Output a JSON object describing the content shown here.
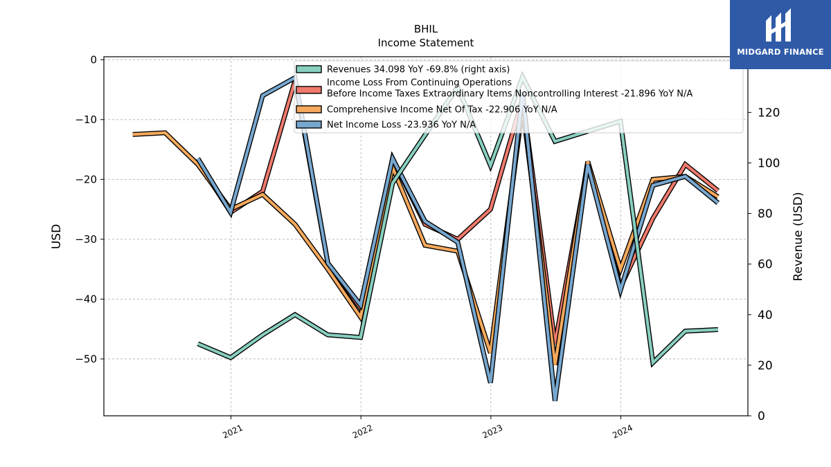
{
  "brand": {
    "name": "MIDGARD FINANCE",
    "bg_color": "#2f5aa8"
  },
  "chart_data": {
    "type": "line",
    "title": "BHIL",
    "subtitle": "Income Statement",
    "ylabel": "USD",
    "ylabel_right": "Revenue (USD)",
    "xlabel": "",
    "ylim": [
      -59.5,
      0.5
    ],
    "ylim_right": [
      0,
      142
    ],
    "yticks": [
      0,
      -10,
      -20,
      -30,
      -40,
      -50
    ],
    "yticks_right": [
      0,
      20,
      40,
      60,
      80,
      100,
      120
    ],
    "x_ticks": [
      {
        "label": "2021",
        "date": "2021-01-01"
      },
      {
        "label": "2022",
        "date": "2022-01-01"
      },
      {
        "label": "2023",
        "date": "2023-01-01"
      },
      {
        "label": "2024",
        "date": "2024-01-01"
      }
    ],
    "grid": true,
    "legend_position": "top-center",
    "series": [
      {
        "name": "Revenues",
        "legend": "Revenues  34.098 YoY -69.8% (right axis)",
        "axis": "right",
        "color": "#88cfc0",
        "x": [
          "2020-09-30",
          "2020-12-31",
          "2021-03-31",
          "2021-06-30",
          "2021-09-30",
          "2021-12-31",
          "2022-03-31",
          "2022-06-30",
          "2022-09-30",
          "2022-12-31",
          "2023-03-31",
          "2023-06-30",
          "2023-09-30",
          "2023-12-31",
          "2024-03-31",
          "2024-06-30",
          "2024-09-30"
        ],
        "y": [
          28.5,
          23,
          32,
          40,
          32,
          31,
          92,
          111,
          130,
          99,
          134,
          108.5,
          112.5,
          116.5,
          21,
          33.5,
          34.098
        ]
      },
      {
        "name": "Income Loss From Continuing Operations Before Income Taxes Extraordinary Items Noncontrolling Interest",
        "legend": "Income Loss From Continuing Operations\nBefore Income Taxes Extraordinary Items Noncontrolling Interest  -21.896 YoY N/A",
        "axis": "left",
        "color": "#f07a6c",
        "x": [
          "2020-09-30",
          "2020-12-31",
          "2021-03-31",
          "2021-06-30",
          "2021-09-30",
          "2021-12-31",
          "2022-03-31",
          "2022-06-30",
          "2022-09-30",
          "2022-12-31",
          "2023-03-31",
          "2023-06-30",
          "2023-09-30",
          "2023-12-31",
          "2024-03-31",
          "2024-06-30",
          "2024-09-30"
        ],
        "y": [
          -17,
          -25.5,
          -22,
          -3.5,
          -34,
          -41.5,
          -16.5,
          -27.5,
          -30,
          -25,
          -6.5,
          -47.5,
          -17.5,
          -38,
          -26.5,
          -17.5,
          -21.896
        ]
      },
      {
        "name": "Comprehensive Income Net Of Tax",
        "legend": "Comprehensive Income Net Of Tax  -22.906 YoY N/A",
        "axis": "left",
        "color": "#f6a95c",
        "x": [
          "2020-03-31",
          "2020-06-30",
          "2020-09-30",
          "2020-12-31",
          "2021-03-31",
          "2021-06-30",
          "2021-09-30",
          "2021-12-31",
          "2022-03-31",
          "2022-06-30",
          "2022-09-30",
          "2022-12-31",
          "2023-03-31",
          "2023-06-30",
          "2023-09-30",
          "2023-12-31",
          "2024-03-31",
          "2024-06-30",
          "2024-09-30"
        ],
        "y": [
          -12.5,
          -12.2,
          -17.5,
          -25,
          -22.5,
          -27.5,
          -35,
          -43,
          -18,
          -31,
          -32,
          -49,
          -8,
          -51,
          -17,
          -35,
          -20,
          -19.5,
          -22.906
        ]
      },
      {
        "name": "Net Income Loss",
        "legend": "Net Income Loss  -23.936 YoY N/A",
        "axis": "left",
        "color": "#77a7cf",
        "x": [
          "2020-09-30",
          "2020-12-31",
          "2021-03-31",
          "2021-06-30",
          "2021-09-30",
          "2021-12-31",
          "2022-03-31",
          "2022-06-30",
          "2022-09-30",
          "2022-12-31",
          "2023-03-31",
          "2023-06-30",
          "2023-09-30",
          "2023-12-31",
          "2024-03-31",
          "2024-06-30",
          "2024-09-30"
        ],
        "y": [
          -16.5,
          -25.5,
          -6,
          -3,
          -34,
          -41,
          -16.5,
          -27,
          -30.5,
          -54,
          -5.5,
          -57,
          -17.5,
          -38.5,
          -21,
          -19.5,
          -23.936
        ]
      }
    ]
  }
}
